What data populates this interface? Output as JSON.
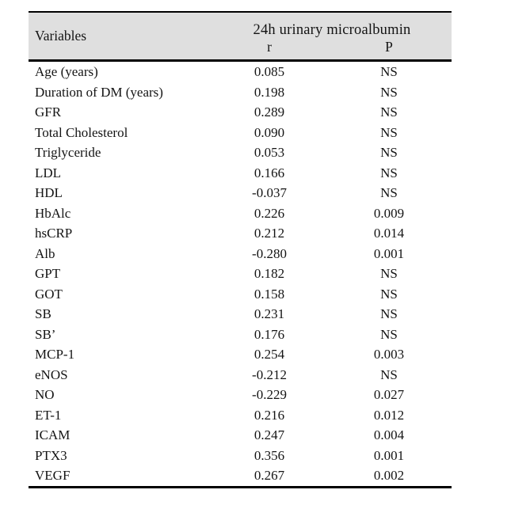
{
  "table": {
    "variables_header": "Variables",
    "group_header": "24h urinary microalbumin",
    "r_header": "r",
    "p_header": "P",
    "rows": [
      {
        "variable": "Age (years)",
        "r": "0.085",
        "p": "NS"
      },
      {
        "variable": "Duration of DM (years)",
        "r": "0.198",
        "p": "NS"
      },
      {
        "variable": "GFR",
        "r": "0.289",
        "p": "NS"
      },
      {
        "variable": "Total Cholesterol",
        "r": "0.090",
        "p": "NS"
      },
      {
        "variable": "Triglyceride",
        "r": "0.053",
        "p": "NS"
      },
      {
        "variable": "LDL",
        "r": "0.166",
        "p": "NS"
      },
      {
        "variable": "HDL",
        "r": "-0.037",
        "p": "NS"
      },
      {
        "variable": "HbAlc",
        "r": "0.226",
        "p": "0.009"
      },
      {
        "variable": "hsCRP",
        "r": "0.212",
        "p": "0.014"
      },
      {
        "variable": "Alb",
        "r": "-0.280",
        "p": "0.001"
      },
      {
        "variable": "GPT",
        "r": "0.182",
        "p": "NS"
      },
      {
        "variable": "GOT",
        "r": "0.158",
        "p": "NS"
      },
      {
        "variable": "SB",
        "r": "0.231",
        "p": "NS"
      },
      {
        "variable": "SB’",
        "r": "0.176",
        "p": "NS"
      },
      {
        "variable": "MCP-1",
        "r": "0.254",
        "p": "0.003"
      },
      {
        "variable": "eNOS",
        "r": "-0.212",
        "p": "NS"
      },
      {
        "variable": "NO",
        "r": "-0.229",
        "p": "0.027"
      },
      {
        "variable": "ET-1",
        "r": "0.216",
        "p": "0.012"
      },
      {
        "variable": "ICAM",
        "r": "0.247",
        "p": "0.004"
      },
      {
        "variable": "PTX3",
        "r": "0.356",
        "p": "0.001"
      },
      {
        "variable": "VEGF",
        "r": "0.267",
        "p": "0.002"
      }
    ],
    "colors": {
      "header_bg": "#dfdfdf",
      "border": "#000000",
      "text": "#141414"
    }
  }
}
